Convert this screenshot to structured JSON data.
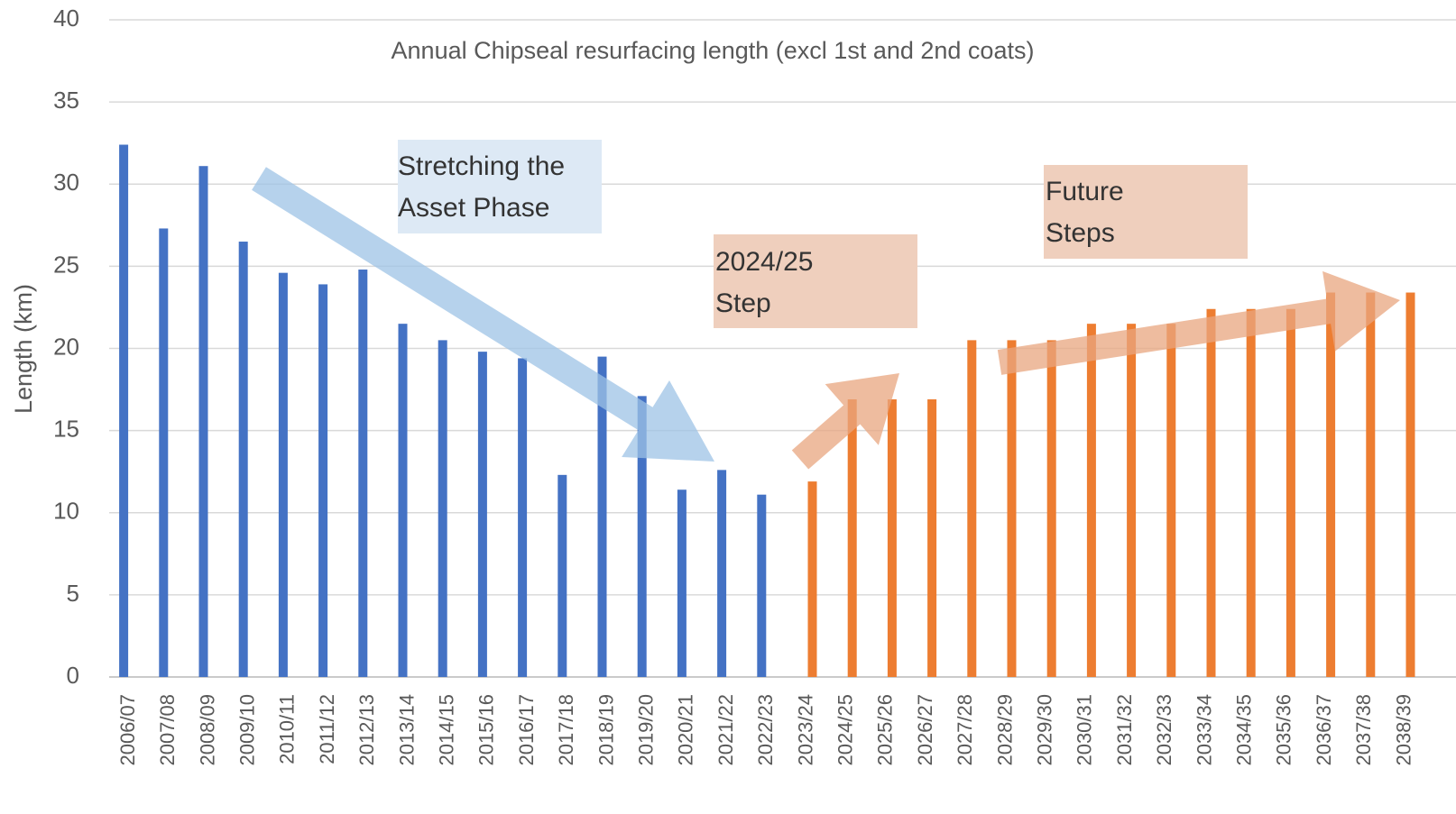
{
  "chart_data": {
    "type": "bar",
    "title": "Annual Chipseal resurfacing length (excl 1st and 2nd coats)",
    "y_label": "Length (km)",
    "categories": [
      "2006/07",
      "2007/08",
      "2008/09",
      "2009/10",
      "2010/11",
      "2011/12",
      "2012/13",
      "2013/14",
      "2014/15",
      "2015/16",
      "2016/17",
      "2017/18",
      "2018/19",
      "2019/20",
      "2020/21",
      "2021/22",
      "2022/23",
      "2023/24",
      "2024/25",
      "2025/26",
      "2026/27",
      "2027/28",
      "2028/29",
      "2029/30",
      "2030/31",
      "2031/32",
      "2032/33",
      "2033/34",
      "2034/35",
      "2035/36",
      "2036/37",
      "2037/38",
      "2038/39"
    ],
    "series": [
      {
        "color": "#4472c4",
        "values": [
          32.4,
          27.3,
          31.1,
          26.5,
          24.6,
          23.9,
          24.8,
          21.5,
          20.5,
          19.8,
          19.4,
          12.3,
          19.5,
          17.1,
          11.4,
          12.6,
          11.1,
          null,
          null,
          null,
          null,
          null,
          null,
          null,
          null,
          null,
          null,
          null,
          null,
          null,
          null,
          null,
          null
        ]
      },
      {
        "color": "#ed7d31",
        "values": [
          null,
          null,
          null,
          null,
          null,
          null,
          null,
          null,
          null,
          null,
          null,
          null,
          null,
          null,
          null,
          null,
          null,
          11.9,
          16.9,
          16.9,
          16.9,
          20.5,
          20.5,
          20.5,
          21.5,
          21.5,
          21.5,
          22.4,
          22.4,
          22.4,
          23.4,
          23.4,
          23.4
        ]
      }
    ],
    "ylim": [
      0,
      40
    ],
    "yticks": [
      0,
      5,
      10,
      15,
      20,
      25,
      30,
      35,
      40
    ],
    "grid": true,
    "annotations": [
      "Stretching the Asset Phase",
      "2024/25 Step",
      "Future Steps"
    ]
  }
}
